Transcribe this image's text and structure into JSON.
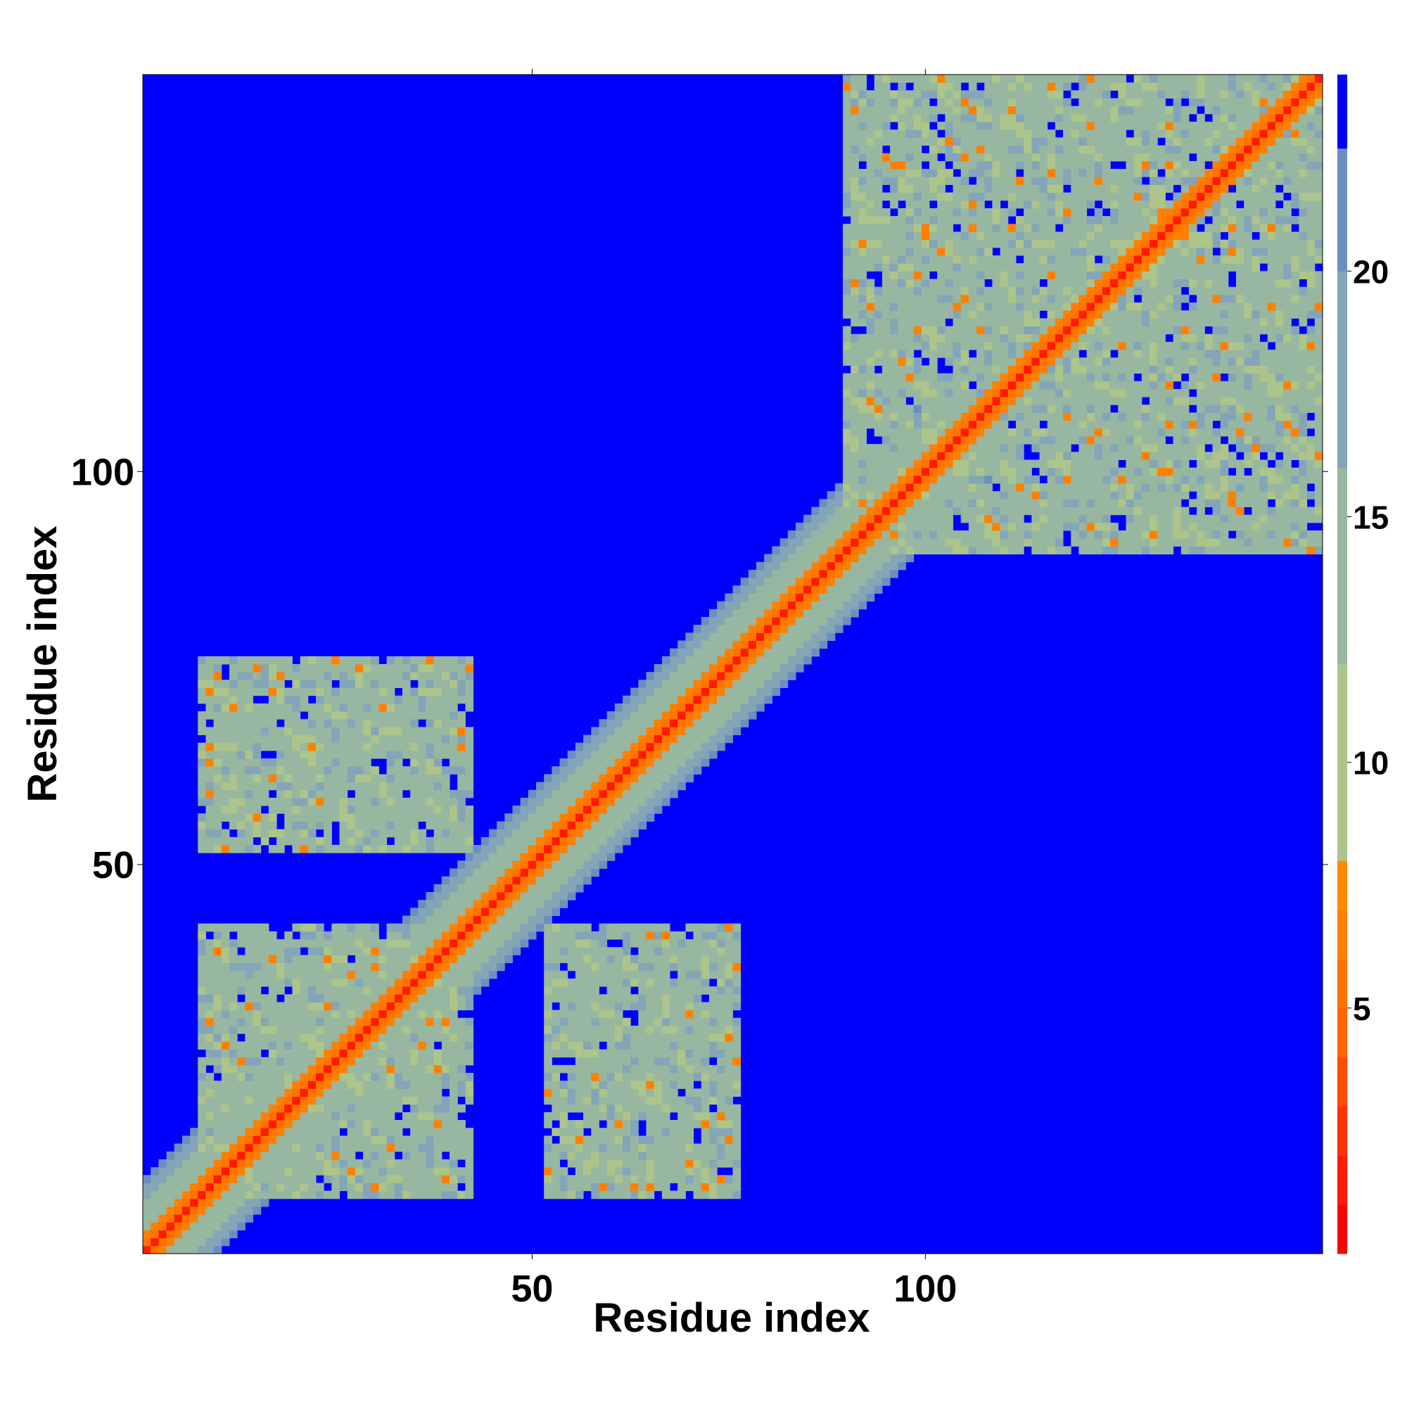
{
  "chart_data": {
    "type": "heatmap",
    "title": "",
    "xlabel": "Residue index",
    "ylabel": "Residue index",
    "xlim": [
      1,
      150
    ],
    "ylim": [
      1,
      150
    ],
    "x_ticks": [
      50,
      100
    ],
    "y_ticks": [
      50,
      100
    ],
    "colorbar": {
      "range": [
        0,
        24
      ],
      "ticks": [
        5,
        10,
        15,
        20
      ],
      "bands": [
        {
          "from": 0,
          "to": 1,
          "color": "#ff0000"
        },
        {
          "from": 1,
          "to": 2,
          "color": "#ff1a00"
        },
        {
          "from": 2,
          "to": 3,
          "color": "#ff3300"
        },
        {
          "from": 3,
          "to": 4,
          "color": "#ff4d00"
        },
        {
          "from": 4,
          "to": 5,
          "color": "#ff6600"
        },
        {
          "from": 5,
          "to": 6,
          "color": "#ff7300"
        },
        {
          "from": 6,
          "to": 7,
          "color": "#ff8000"
        },
        {
          "from": 7,
          "to": 8,
          "color": "#ff8c00"
        },
        {
          "from": 8,
          "to": 12,
          "color": "#adc48a"
        },
        {
          "from": 12,
          "to": 16,
          "color": "#97b7a0"
        },
        {
          "from": 16,
          "to": 20,
          "color": "#84a5b8"
        },
        {
          "from": 20,
          "to": 22.5,
          "color": "#6b8fbf"
        },
        {
          "from": 22.5,
          "to": 24,
          "color": "#0000ff"
        }
      ]
    },
    "diagonal": {
      "from": 1,
      "to": 150,
      "value": 1
    },
    "bands_along_diagonal": [
      {
        "from": 1,
        "to": 150,
        "offset_max": 2,
        "value": 5.5
      },
      {
        "from": 1,
        "to": 105,
        "offset_max": 6,
        "value": 12
      },
      {
        "from": 1,
        "to": 105,
        "offset_max": 9,
        "value": 16
      }
    ],
    "contact_regions": [
      {
        "x_range": [
          8,
          42
        ],
        "y_range": [
          8,
          40
        ],
        "value": 14
      },
      {
        "x_range": [
          8,
          42
        ],
        "y_range": [
          52,
          76
        ],
        "value": 14
      },
      {
        "x_range": [
          52,
          76
        ],
        "y_range": [
          8,
          42
        ],
        "value": 14
      },
      {
        "x_range": [
          90,
          150
        ],
        "y_range": [
          90,
          150
        ],
        "value": 14
      }
    ],
    "annotations": []
  }
}
